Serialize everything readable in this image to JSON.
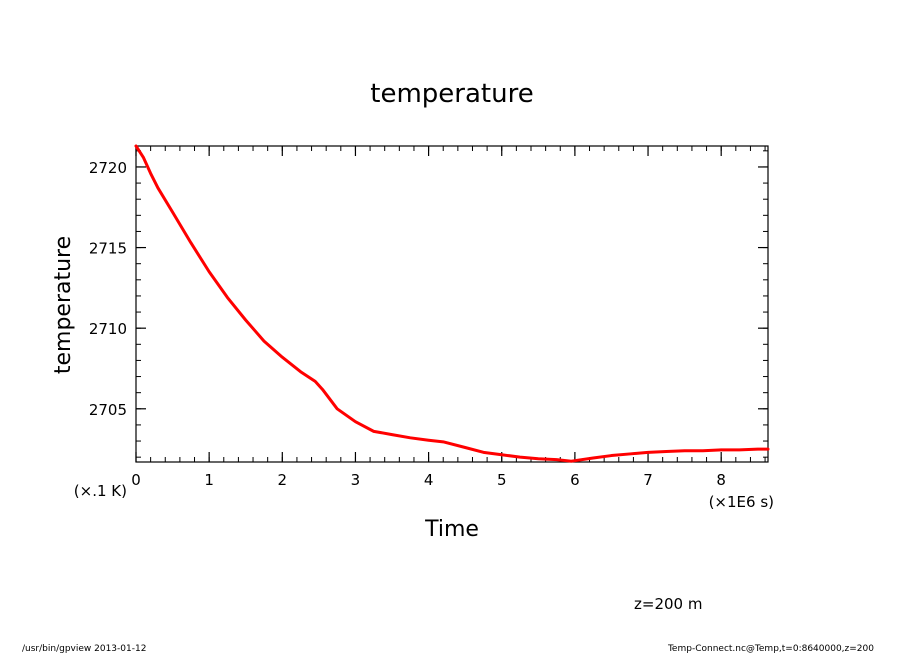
{
  "chart_data": {
    "type": "line",
    "title": "temperature",
    "xlabel": "Time",
    "ylabel": "temperature",
    "x_unit_label": "(×1E6 s)",
    "y_unit_label": "(×.1 K)",
    "xlim": [
      0,
      8.64
    ],
    "ylim": [
      2701.7,
      2721.3
    ],
    "x_ticks": [
      0,
      1,
      2,
      3,
      4,
      5,
      6,
      7,
      8
    ],
    "x_tick_labels": [
      "0",
      "1",
      "2",
      "3",
      "4",
      "5",
      "6",
      "7",
      "8"
    ],
    "y_ticks": [
      2705,
      2710,
      2715,
      2720
    ],
    "y_tick_labels": [
      "2705",
      "2710",
      "2715",
      "2720"
    ],
    "grid": false,
    "line_color": "#ff0000",
    "series": [
      {
        "x": [
          0,
          0.1,
          0.2,
          0.3,
          0.5,
          0.75,
          1.0,
          1.25,
          1.5,
          1.75,
          2.0,
          2.25,
          2.45,
          2.55,
          2.75,
          3.0,
          3.25,
          3.5,
          3.75,
          4.0,
          4.2,
          4.5,
          4.75,
          5.0,
          5.25,
          5.5,
          5.75,
          5.95,
          6.25,
          6.5,
          6.75,
          7.0,
          7.25,
          7.5,
          7.75,
          8.0,
          8.25,
          8.5,
          8.64
        ],
        "values": [
          2721.3,
          2720.6,
          2719.6,
          2718.7,
          2717.2,
          2715.3,
          2713.5,
          2711.9,
          2710.5,
          2709.2,
          2708.2,
          2707.3,
          2706.7,
          2706.2,
          2705.0,
          2704.2,
          2703.6,
          2703.4,
          2703.2,
          2703.05,
          2702.95,
          2702.6,
          2702.3,
          2702.15,
          2702.0,
          2701.9,
          2701.85,
          2701.75,
          2701.95,
          2702.1,
          2702.2,
          2702.3,
          2702.35,
          2702.4,
          2702.4,
          2702.45,
          2702.45,
          2702.5,
          2702.5
        ]
      }
    ],
    "annotation": "z=200 m"
  },
  "footer": {
    "left": "/usr/bin/gpview   2013-01-12",
    "right": "Temp-Connect.nc@Temp,t=0:8640000,z=200"
  }
}
